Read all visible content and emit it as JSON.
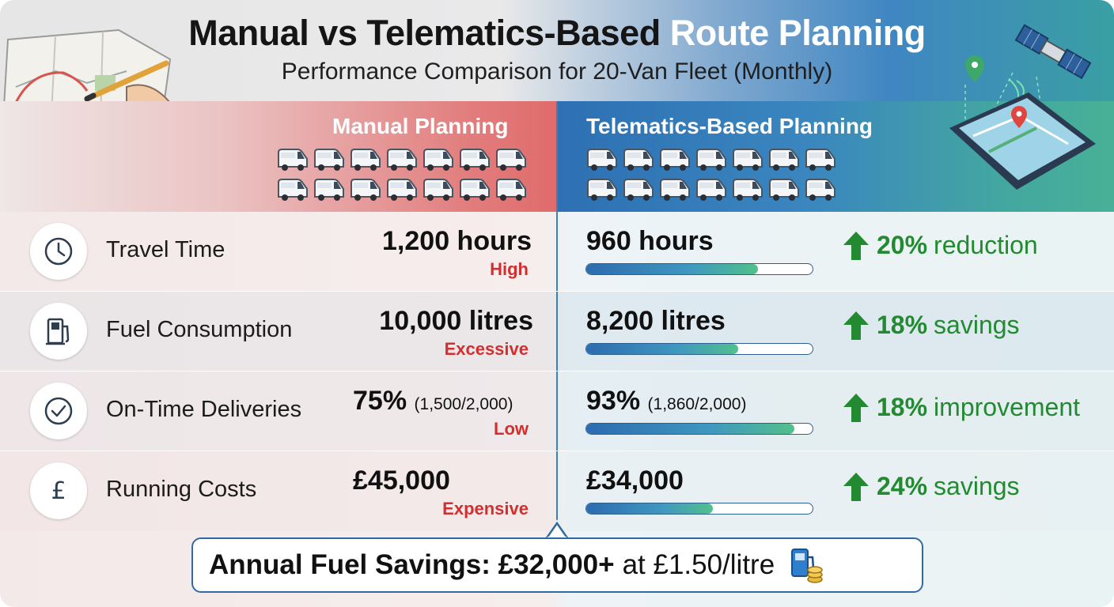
{
  "header": {
    "title_main": "Manual vs Telematics-Based",
    "title_accent": "Route Planning",
    "subtitle": "Performance Comparison for 20-Van Fleet (Monthly)"
  },
  "columns": {
    "manual": "Manual Planning",
    "telematics": "Telematics-Based Planning"
  },
  "rows": [
    {
      "icon": "clock-icon",
      "label": "Travel Time",
      "manual_value": "1,200 hours",
      "manual_paren": "",
      "manual_tag": "High",
      "tele_value": "960 hours",
      "tele_paren": "",
      "tele_bar_fraction": 0.76,
      "improvement_pct": "20%",
      "improvement_word": "reduction"
    },
    {
      "icon": "fuel-pump-icon",
      "label": "Fuel Consumption",
      "manual_value": "10,000 litres",
      "manual_paren": "",
      "manual_tag": "Excessive",
      "tele_value": "8,200 litres",
      "tele_paren": "",
      "tele_bar_fraction": 0.67,
      "improvement_pct": "18%",
      "improvement_word": "savings"
    },
    {
      "icon": "check-circle-icon",
      "label": "On-Time Deliveries",
      "manual_value": "75%",
      "manual_paren": "(1,500/2,000)",
      "manual_tag": "Low",
      "tele_value": "93%",
      "tele_paren": "(1,860/2,000)",
      "tele_bar_fraction": 0.92,
      "improvement_pct": "18%",
      "improvement_word": "improvement"
    },
    {
      "icon": "pound-icon",
      "label": "Running Costs",
      "manual_value": "£45,000",
      "manual_paren": "",
      "manual_tag": "Expensive",
      "tele_value": "£34,000",
      "tele_paren": "",
      "tele_bar_fraction": 0.56,
      "improvement_pct": "24%",
      "improvement_word": "savings"
    }
  ],
  "banner": {
    "strong": "Annual Fuel Savings: £32,000+",
    "rest": "at £1.50/litre"
  },
  "colors": {
    "improvement_green": "#228a30",
    "manual_tag_red": "#d0302f",
    "divider_blue": "#3d7fb9"
  }
}
